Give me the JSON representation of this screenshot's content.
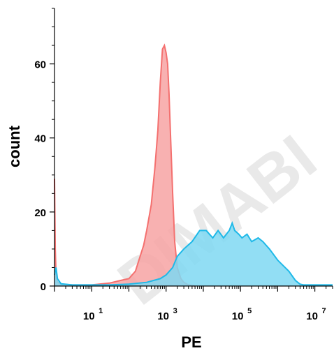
{
  "chart_data": {
    "type": "area",
    "xlabel": "PE",
    "ylabel": "count",
    "x_scale": "log",
    "xlim": [
      1,
      30000000
    ],
    "ylim": [
      0,
      75
    ],
    "x_ticks": [
      {
        "value": 10,
        "base": "10",
        "exp": "1"
      },
      {
        "value": 1000,
        "base": "10",
        "exp": "3"
      },
      {
        "value": 100000,
        "base": "10",
        "exp": "5"
      },
      {
        "value": 10000000,
        "base": "10",
        "exp": "7"
      }
    ],
    "y_ticks": [
      0,
      20,
      40,
      60
    ],
    "watermark": "DIMABI",
    "grid": false,
    "series": [
      {
        "color": "#f4706f",
        "fill": "#f7a3a3",
        "points": [
          [
            1.0,
            29
          ],
          [
            1.05,
            10
          ],
          [
            1.1,
            3
          ],
          [
            1.2,
            1
          ],
          [
            1.5,
            0.5
          ],
          [
            3,
            0.3
          ],
          [
            10,
            0.3
          ],
          [
            30,
            0.8
          ],
          [
            60,
            1.5
          ],
          [
            100,
            2
          ],
          [
            150,
            4
          ],
          [
            200,
            8
          ],
          [
            250,
            11
          ],
          [
            300,
            15
          ],
          [
            400,
            22
          ],
          [
            500,
            32
          ],
          [
            600,
            42
          ],
          [
            700,
            55
          ],
          [
            800,
            64
          ],
          [
            900,
            65
          ],
          [
            1000,
            63
          ],
          [
            1100,
            60
          ],
          [
            1200,
            52
          ],
          [
            1300,
            42
          ],
          [
            1500,
            25
          ],
          [
            1700,
            12
          ],
          [
            2000,
            5
          ],
          [
            2500,
            2
          ],
          [
            3000,
            1
          ],
          [
            4000,
            0.3
          ],
          [
            6000,
            0
          ]
        ]
      },
      {
        "color": "#1fb9e8",
        "fill": "#7fd8f2",
        "points": [
          [
            1.0,
            3
          ],
          [
            1.1,
            5
          ],
          [
            1.2,
            2
          ],
          [
            1.5,
            0.6
          ],
          [
            3,
            0.3
          ],
          [
            10,
            0.3
          ],
          [
            30,
            0.3
          ],
          [
            100,
            0.5
          ],
          [
            300,
            1
          ],
          [
            700,
            2
          ],
          [
            1000,
            3
          ],
          [
            1500,
            5
          ],
          [
            2000,
            8
          ],
          [
            3000,
            10
          ],
          [
            5000,
            12
          ],
          [
            8000,
            15
          ],
          [
            12000,
            15
          ],
          [
            18000,
            13
          ],
          [
            25000,
            15
          ],
          [
            35000,
            13
          ],
          [
            50000,
            15
          ],
          [
            60000,
            17
          ],
          [
            70000,
            15
          ],
          [
            90000,
            14
          ],
          [
            110000,
            13
          ],
          [
            150000,
            14
          ],
          [
            200000,
            12
          ],
          [
            300000,
            13
          ],
          [
            400000,
            12
          ],
          [
            600000,
            10
          ],
          [
            1000000,
            7
          ],
          [
            2000000,
            4
          ],
          [
            3000000,
            1.5
          ],
          [
            4000000,
            0.5
          ],
          [
            5000000,
            0.3
          ],
          [
            30000000,
            0.3
          ]
        ]
      }
    ]
  }
}
